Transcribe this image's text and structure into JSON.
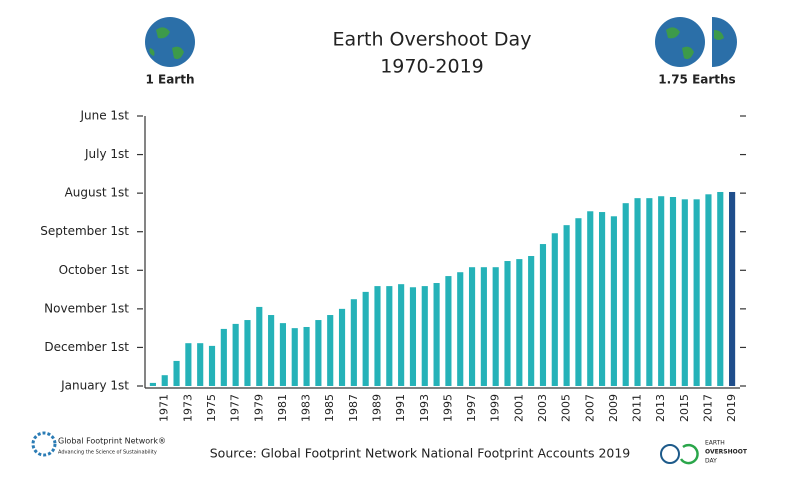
{
  "chart_data": {
    "type": "bar",
    "title": "Earth Overshoot Day",
    "subtitle": "1970-2019",
    "categories": [
      null,
      "1971",
      null,
      "1973",
      null,
      "1975",
      null,
      "1977",
      null,
      "1979",
      null,
      "1981",
      null,
      "1983",
      null,
      "1985",
      null,
      "1987",
      null,
      "1989",
      null,
      "1991",
      null,
      "1993",
      null,
      "1995",
      null,
      "1997",
      null,
      "1999",
      null,
      "2001",
      null,
      "2003",
      null,
      "2005",
      null,
      "2007",
      null,
      "2009",
      null,
      "2011",
      null,
      "2013",
      null,
      "2015",
      null,
      "2017",
      null,
      "2019"
    ],
    "values": [
      0.08,
      0.28,
      0.65,
      1.11,
      1.11,
      1.04,
      1.48,
      1.61,
      1.71,
      2.05,
      1.84,
      1.63,
      1.5,
      1.53,
      1.71,
      1.84,
      2.0,
      2.25,
      2.44,
      2.59,
      2.59,
      2.64,
      2.56,
      2.59,
      2.67,
      2.85,
      2.95,
      3.08,
      3.08,
      3.08,
      3.24,
      3.29,
      3.37,
      3.68,
      3.96,
      4.17,
      4.35,
      4.53,
      4.51,
      4.4,
      4.74,
      4.87,
      4.87,
      4.92,
      4.9,
      4.84,
      4.84,
      4.97,
      5.03,
      5.03
    ],
    "colors": [
      "#25b2b8",
      "#25b2b8",
      "#25b2b8",
      "#25b2b8",
      "#25b2b8",
      "#25b2b8",
      "#25b2b8",
      "#25b2b8",
      "#25b2b8",
      "#25b2b8",
      "#25b2b8",
      "#25b2b8",
      "#25b2b8",
      "#25b2b8",
      "#25b2b8",
      "#25b2b8",
      "#25b2b8",
      "#25b2b8",
      "#25b2b8",
      "#25b2b8",
      "#25b2b8",
      "#25b2b8",
      "#25b2b8",
      "#25b2b8",
      "#25b2b8",
      "#25b2b8",
      "#25b2b8",
      "#25b2b8",
      "#25b2b8",
      "#25b2b8",
      "#25b2b8",
      "#25b2b8",
      "#25b2b8",
      "#25b2b8",
      "#25b2b8",
      "#25b2b8",
      "#25b2b8",
      "#25b2b8",
      "#25b2b8",
      "#25b2b8",
      "#25b2b8",
      "#25b2b8",
      "#25b2b8",
      "#25b2b8",
      "#25b2b8",
      "#25b2b8",
      "#25b2b8",
      "#25b2b8",
      "#25b2b8",
      "#1f4e8c"
    ],
    "ylim": [
      0,
      7
    ],
    "yticks": [
      {
        "value": 0,
        "label": "January 1st"
      },
      {
        "value": 1,
        "label": "December 1st"
      },
      {
        "value": 2,
        "label": "November 1st"
      },
      {
        "value": 3,
        "label": "October 1st"
      },
      {
        "value": 4,
        "label": "September 1st"
      },
      {
        "value": 5,
        "label": "August 1st"
      },
      {
        "value": 6,
        "label": "July 1st"
      },
      {
        "value": 7,
        "label": "June 1st"
      }
    ],
    "grid": false,
    "left_marker": "1 Earth",
    "right_marker": "1.75 Earths",
    "source": "Source: Global Footprint Network National Footprint Accounts 2019"
  },
  "logos": {
    "left_name": "Global Footprint Network®",
    "left_tagline": "Advancing the Science of Sustainability",
    "right_line1": "EARTH",
    "right_line2": "OVERSHOOT",
    "right_line3": "DAY"
  }
}
